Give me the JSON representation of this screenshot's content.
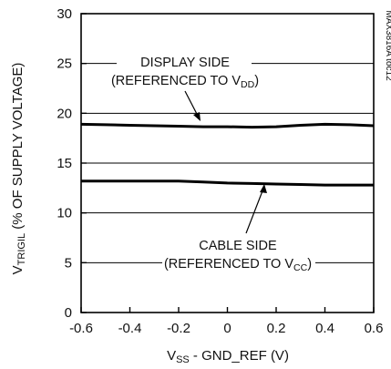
{
  "chart_data": {
    "type": "line",
    "xlabel": {
      "main": "V",
      "sub": "SS",
      "rest": " - GND_REF (V)"
    },
    "ylabel": {
      "main": "V",
      "sub": "TRIGIL",
      "rest": " (% OF SUPPLY VOLTAGE)"
    },
    "xlim": [
      -0.6,
      0.6
    ],
    "ylim": [
      0,
      30
    ],
    "x_ticks": [
      -0.6,
      -0.4,
      -0.2,
      0,
      0.2,
      0.4,
      0.6
    ],
    "x_tick_labels": [
      "-0.6",
      "-0.4",
      "-0.2",
      "0",
      "0.2",
      "0.4",
      "0.6"
    ],
    "y_ticks": [
      0,
      5,
      10,
      15,
      20,
      25,
      30
    ],
    "y_tick_labels": [
      "0",
      "5",
      "10",
      "15",
      "20",
      "25",
      "30"
    ],
    "grid": true,
    "side_code": "MAX3816A toc12",
    "series": [
      {
        "x": [
          -0.6,
          -0.5,
          -0.4,
          -0.3,
          -0.2,
          -0.1,
          0,
          0.1,
          0.2,
          0.3,
          0.4,
          0.5,
          0.6
        ],
        "y": [
          18.9,
          18.85,
          18.8,
          18.75,
          18.7,
          18.65,
          18.65,
          18.6,
          18.65,
          18.8,
          18.9,
          18.85,
          18.75
        ]
      },
      {
        "x": [
          -0.6,
          -0.5,
          -0.4,
          -0.3,
          -0.2,
          -0.1,
          0,
          0.1,
          0.2,
          0.3,
          0.4,
          0.5,
          0.6
        ],
        "y": [
          13.2,
          13.2,
          13.2,
          13.2,
          13.2,
          13.1,
          13.0,
          12.95,
          12.9,
          12.85,
          12.8,
          12.8,
          12.8
        ]
      }
    ],
    "annotations": [
      {
        "line1": "DISPLAY SIDE",
        "line2_prefix": "(REFERENCED TO V",
        "line2_sub": "DD",
        "line2_suffix": ")"
      },
      {
        "line1": "CABLE SIDE",
        "line2_prefix": "(REFERENCED TO V",
        "line2_sub": "CC",
        "line2_suffix": ")"
      }
    ]
  }
}
